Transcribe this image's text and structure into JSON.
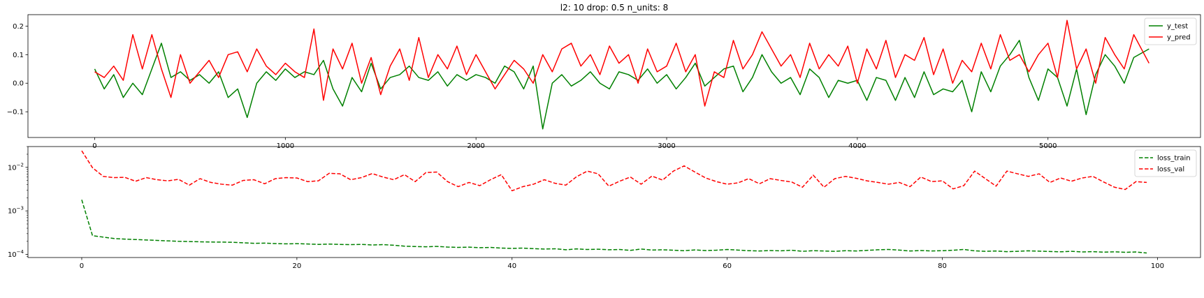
{
  "chart_data": [
    {
      "type": "line",
      "title": "l2: 10 drop: 0.5 n_units: 8",
      "xlabel": "",
      "ylabel": "",
      "xlim": [
        -350,
        5800
      ],
      "ylim": [
        -0.19,
        0.24
      ],
      "x_ticks": [
        0,
        1000,
        2000,
        3000,
        4000,
        5000
      ],
      "x_tick_labels": [
        "0",
        "1000",
        "2000",
        "3000",
        "4000",
        "5000"
      ],
      "y_ticks": [
        -0.1,
        0.0,
        0.1,
        0.2
      ],
      "y_tick_labels": [
        "−0.1",
        "0.0",
        "0.1",
        "0.2"
      ],
      "legend_position": "top-right",
      "grid": false,
      "series": [
        {
          "name": "y_test",
          "color": "#008000",
          "x": [
            0,
            50,
            100,
            150,
            200,
            250,
            300,
            350,
            400,
            450,
            500,
            550,
            600,
            650,
            700,
            750,
            800,
            850,
            900,
            950,
            1000,
            1050,
            1100,
            1150,
            1200,
            1250,
            1300,
            1350,
            1400,
            1450,
            1500,
            1550,
            1600,
            1650,
            1700,
            1750,
            1800,
            1850,
            1900,
            1950,
            2000,
            2050,
            2100,
            2150,
            2200,
            2250,
            2300,
            2350,
            2400,
            2450,
            2500,
            2550,
            2600,
            2650,
            2700,
            2750,
            2800,
            2850,
            2900,
            2950,
            3000,
            3050,
            3100,
            3150,
            3200,
            3250,
            3300,
            3350,
            3400,
            3450,
            3500,
            3550,
            3600,
            3650,
            3700,
            3750,
            3800,
            3850,
            3900,
            3950,
            4000,
            4050,
            4100,
            4150,
            4200,
            4250,
            4300,
            4350,
            4400,
            4450,
            4500,
            4550,
            4600,
            4650,
            4700,
            4750,
            4800,
            4850,
            4900,
            4950,
            5000,
            5050,
            5100,
            5150,
            5200,
            5250,
            5300,
            5350,
            5400,
            5450,
            5530
          ],
          "values": [
            0.05,
            -0.02,
            0.03,
            -0.05,
            0.0,
            -0.04,
            0.05,
            0.14,
            0.02,
            0.04,
            0.01,
            0.03,
            0.0,
            0.04,
            -0.05,
            -0.02,
            -0.12,
            0.0,
            0.04,
            0.01,
            0.05,
            0.02,
            0.04,
            0.03,
            0.08,
            -0.02,
            -0.08,
            0.02,
            -0.03,
            0.07,
            -0.02,
            0.02,
            0.03,
            0.06,
            0.02,
            0.01,
            0.04,
            -0.01,
            0.03,
            0.01,
            0.03,
            0.02,
            0.0,
            0.06,
            0.04,
            -0.02,
            0.06,
            -0.16,
            0.0,
            0.03,
            -0.01,
            0.01,
            0.04,
            0.0,
            -0.02,
            0.04,
            0.03,
            0.01,
            0.05,
            0.0,
            0.03,
            -0.02,
            0.02,
            0.07,
            -0.01,
            0.02,
            0.05,
            0.06,
            -0.03,
            0.02,
            0.1,
            0.04,
            0.0,
            0.02,
            -0.04,
            0.05,
            0.02,
            -0.05,
            0.01,
            0.0,
            0.01,
            -0.06,
            0.02,
            0.01,
            -0.06,
            0.02,
            -0.05,
            0.04,
            -0.04,
            -0.02,
            -0.03,
            0.01,
            -0.1,
            0.04,
            -0.03,
            0.06,
            0.1,
            0.15,
            0.02,
            -0.06,
            0.05,
            0.02,
            -0.08,
            0.05,
            -0.11,
            0.03,
            0.1,
            0.06,
            0.0,
            0.09,
            0.12
          ]
        },
        {
          "name": "y_pred",
          "color": "#ff0000",
          "x": [
            0,
            50,
            100,
            150,
            200,
            250,
            300,
            350,
            400,
            450,
            500,
            550,
            600,
            650,
            700,
            750,
            800,
            850,
            900,
            950,
            1000,
            1050,
            1100,
            1150,
            1200,
            1250,
            1300,
            1350,
            1400,
            1450,
            1500,
            1550,
            1600,
            1650,
            1700,
            1750,
            1800,
            1850,
            1900,
            1950,
            2000,
            2050,
            2100,
            2150,
            2200,
            2250,
            2300,
            2350,
            2400,
            2450,
            2500,
            2550,
            2600,
            2650,
            2700,
            2750,
            2800,
            2850,
            2900,
            2950,
            3000,
            3050,
            3100,
            3150,
            3200,
            3250,
            3300,
            3350,
            3400,
            3450,
            3500,
            3550,
            3600,
            3650,
            3700,
            3750,
            3800,
            3850,
            3900,
            3950,
            4000,
            4050,
            4100,
            4150,
            4200,
            4250,
            4300,
            4350,
            4400,
            4450,
            4500,
            4550,
            4600,
            4650,
            4700,
            4750,
            4800,
            4850,
            4900,
            4950,
            5000,
            5050,
            5100,
            5150,
            5200,
            5250,
            5300,
            5350,
            5400,
            5450,
            5530
          ],
          "values": [
            0.04,
            0.02,
            0.06,
            0.01,
            0.17,
            0.05,
            0.17,
            0.05,
            -0.05,
            0.1,
            0.0,
            0.04,
            0.08,
            0.02,
            0.1,
            0.11,
            0.04,
            0.12,
            0.06,
            0.03,
            0.07,
            0.04,
            0.02,
            0.19,
            -0.06,
            0.12,
            0.05,
            0.14,
            0.0,
            0.09,
            -0.04,
            0.06,
            0.12,
            0.01,
            0.16,
            0.02,
            0.1,
            0.05,
            0.13,
            0.03,
            0.1,
            0.04,
            -0.02,
            0.03,
            0.08,
            0.05,
            0.0,
            0.1,
            0.04,
            0.12,
            0.14,
            0.06,
            0.1,
            0.03,
            0.13,
            0.07,
            0.1,
            0.0,
            0.12,
            0.04,
            0.06,
            0.14,
            0.04,
            0.1,
            -0.08,
            0.04,
            0.02,
            0.15,
            0.05,
            0.1,
            0.18,
            0.12,
            0.06,
            0.1,
            0.02,
            0.14,
            0.05,
            0.1,
            0.06,
            0.13,
            0.0,
            0.12,
            0.05,
            0.15,
            0.02,
            0.1,
            0.08,
            0.16,
            0.03,
            0.12,
            0.0,
            0.08,
            0.04,
            0.14,
            0.05,
            0.17,
            0.08,
            0.1,
            0.04,
            0.1,
            0.14,
            0.02,
            0.22,
            0.05,
            0.12,
            0.0,
            0.16,
            0.1,
            0.05,
            0.17,
            0.07
          ]
        }
      ]
    },
    {
      "type": "line",
      "title": "",
      "xlabel": "",
      "ylabel": "",
      "yscale": "log",
      "xlim": [
        -5,
        104
      ],
      "ylim": [
        8.5e-05,
        0.03
      ],
      "x_ticks": [
        0,
        20,
        40,
        60,
        80,
        100
      ],
      "x_tick_labels": [
        "0",
        "20",
        "40",
        "60",
        "80",
        "100"
      ],
      "y_ticks": [
        0.0001,
        0.001,
        0.01
      ],
      "y_tick_labels": [
        [
          "10",
          "−4"
        ],
        [
          "10",
          "−3"
        ],
        [
          "10",
          "−2"
        ]
      ],
      "legend_position": "top-right",
      "grid": false,
      "series": [
        {
          "name": "loss_train",
          "color": "#008000",
          "dash": "dashed",
          "x": [
            0,
            1,
            2,
            3,
            4,
            5,
            6,
            7,
            8,
            9,
            10,
            11,
            12,
            13,
            14,
            15,
            16,
            17,
            18,
            19,
            20,
            21,
            22,
            23,
            24,
            25,
            26,
            27,
            28,
            29,
            30,
            31,
            32,
            33,
            34,
            35,
            36,
            37,
            38,
            39,
            40,
            41,
            42,
            43,
            44,
            45,
            46,
            47,
            48,
            49,
            50,
            51,
            52,
            53,
            54,
            55,
            56,
            57,
            58,
            59,
            60,
            61,
            62,
            63,
            64,
            65,
            66,
            67,
            68,
            69,
            70,
            71,
            72,
            73,
            74,
            75,
            76,
            77,
            78,
            79,
            80,
            81,
            82,
            83,
            84,
            85,
            86,
            87,
            88,
            89,
            90,
            91,
            92,
            93,
            94,
            95,
            96,
            97,
            98,
            99
          ],
          "values": [
            0.0018,
            0.00027,
            0.00025,
            0.000232,
            0.000225,
            0.00022,
            0.000215,
            0.00021,
            0.000205,
            0.0002,
            0.000198,
            0.000195,
            0.000193,
            0.000192,
            0.00019,
            0.000185,
            0.00018,
            0.000182,
            0.000178,
            0.000175,
            0.000177,
            0.000174,
            0.00017,
            0.000173,
            0.00017,
            0.000168,
            0.00017,
            0.000165,
            0.000168,
            0.000163,
            0.000155,
            0.000152,
            0.00015,
            0.000153,
            0.000148,
            0.000145,
            0.000147,
            0.000143,
            0.000145,
            0.00014,
            0.000138,
            0.00014,
            0.000136,
            0.000133,
            0.000135,
            0.000128,
            0.000134,
            0.00013,
            0.000132,
            0.000128,
            0.00013,
            0.000124,
            0.000133,
            0.000126,
            0.000128,
            0.000125,
            0.000122,
            0.000127,
            0.000123,
            0.000125,
            0.00013,
            0.000126,
            0.000122,
            0.00012,
            0.000123,
            0.000121,
            0.000125,
            0.000118,
            0.000122,
            0.00012,
            0.000118,
            0.000122,
            0.00012,
            0.000124,
            0.000128,
            0.00013,
            0.000126,
            0.00012,
            0.000123,
            0.00012,
            0.000122,
            0.000125,
            0.00013,
            0.000121,
            0.000118,
            0.00012,
            0.000116,
            0.000118,
            0.000121,
            0.000119,
            0.000117,
            0.000115,
            0.000118,
            0.000114,
            0.000116,
            0.000113,
            0.000115,
            0.000112,
            0.000114,
            0.000108
          ]
        },
        {
          "name": "loss_val",
          "color": "#ff0000",
          "dash": "dashed",
          "x": [
            0,
            1,
            2,
            3,
            4,
            5,
            6,
            7,
            8,
            9,
            10,
            11,
            12,
            13,
            14,
            15,
            16,
            17,
            18,
            19,
            20,
            21,
            22,
            23,
            24,
            25,
            26,
            27,
            28,
            29,
            30,
            31,
            32,
            33,
            34,
            35,
            36,
            37,
            38,
            39,
            40,
            41,
            42,
            43,
            44,
            45,
            46,
            47,
            48,
            49,
            50,
            51,
            52,
            53,
            54,
            55,
            56,
            57,
            58,
            59,
            60,
            61,
            62,
            63,
            64,
            65,
            66,
            67,
            68,
            69,
            70,
            71,
            72,
            73,
            74,
            75,
            76,
            77,
            78,
            79,
            80,
            81,
            82,
            83,
            84,
            85,
            86,
            87,
            88,
            89,
            90,
            91,
            92,
            93,
            94,
            95,
            96,
            97,
            98,
            99
          ],
          "values": [
            0.024,
            0.0098,
            0.0062,
            0.0058,
            0.0059,
            0.0048,
            0.0058,
            0.0052,
            0.0049,
            0.0053,
            0.0039,
            0.0055,
            0.0045,
            0.0041,
            0.0039,
            0.005,
            0.0052,
            0.0042,
            0.0055,
            0.0058,
            0.0057,
            0.0047,
            0.0049,
            0.0073,
            0.0071,
            0.0052,
            0.0058,
            0.0072,
            0.006,
            0.0052,
            0.0068,
            0.0047,
            0.0076,
            0.0078,
            0.0047,
            0.0036,
            0.0045,
            0.0038,
            0.0052,
            0.0068,
            0.0029,
            0.0036,
            0.0041,
            0.0052,
            0.0043,
            0.0039,
            0.0061,
            0.0082,
            0.0071,
            0.0037,
            0.0048,
            0.006,
            0.0041,
            0.0063,
            0.0051,
            0.0082,
            0.0108,
            0.0078,
            0.0057,
            0.0047,
            0.0041,
            0.0044,
            0.0055,
            0.0042,
            0.0055,
            0.005,
            0.0046,
            0.0035,
            0.0066,
            0.0035,
            0.0055,
            0.0062,
            0.0056,
            0.0049,
            0.0045,
            0.0041,
            0.0045,
            0.0036,
            0.006,
            0.0047,
            0.0049,
            0.0032,
            0.0038,
            0.0082,
            0.0055,
            0.0037,
            0.0082,
            0.0071,
            0.0062,
            0.0071,
            0.0045,
            0.0057,
            0.0048,
            0.0057,
            0.0062,
            0.0046,
            0.0035,
            0.0031,
            0.0047,
            0.0045
          ]
        }
      ]
    }
  ]
}
